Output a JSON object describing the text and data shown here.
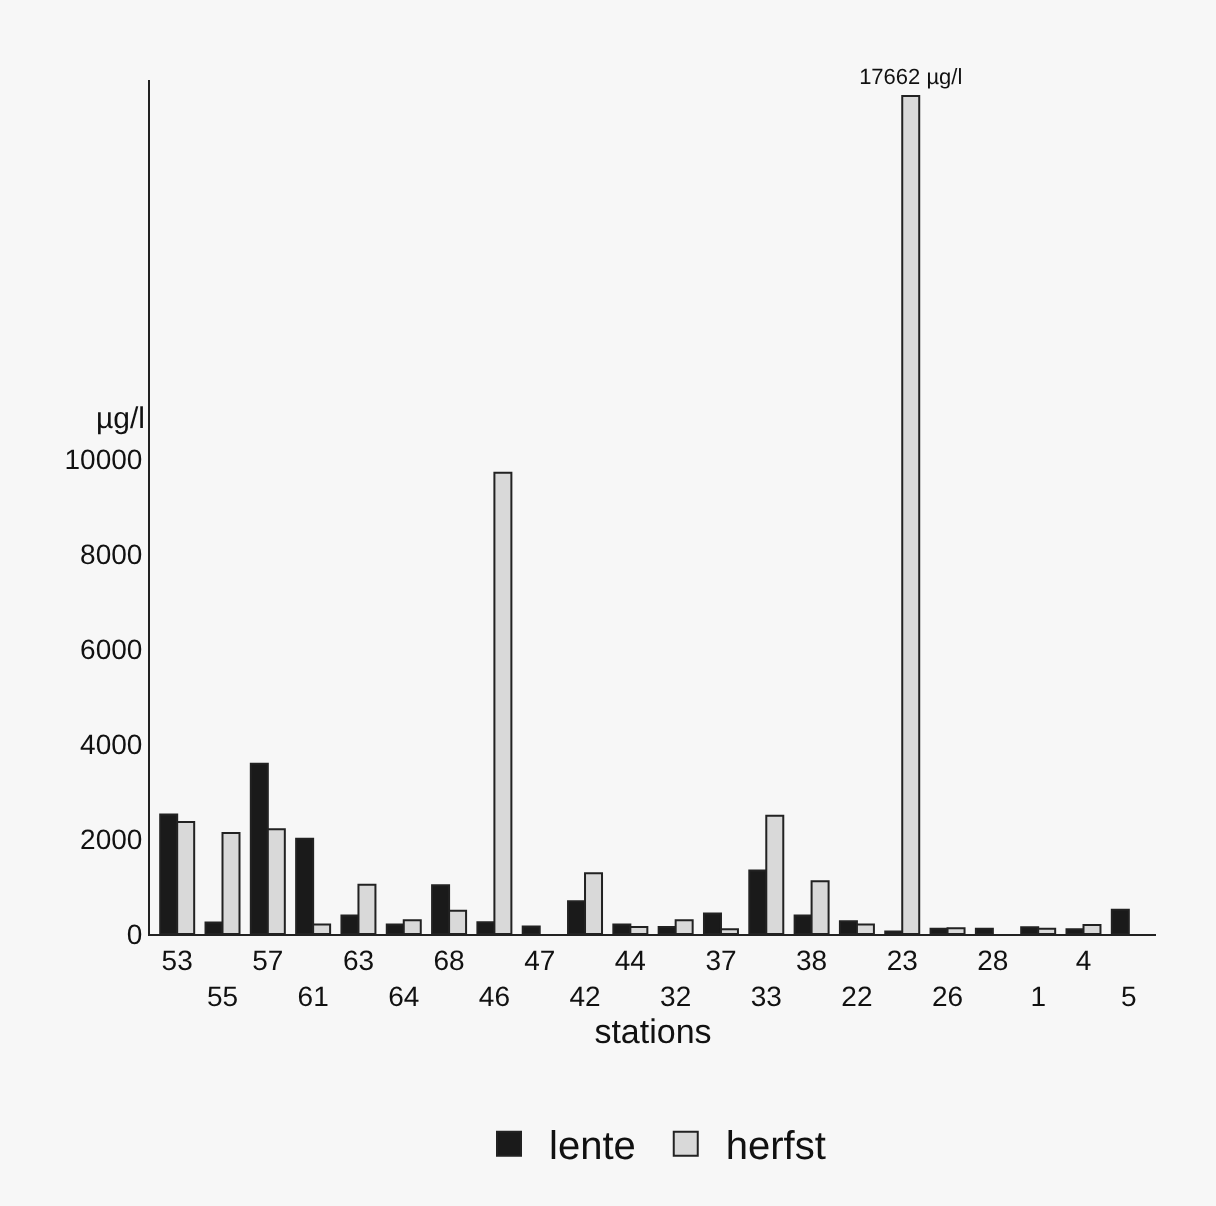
{
  "chart_data": {
    "type": "bar",
    "xlabel": "stations",
    "ylabel": "µg/l",
    "categories": [
      "53",
      "55",
      "57",
      "61",
      "63",
      "64",
      "68",
      "46",
      "47",
      "42",
      "44",
      "32",
      "37",
      "33",
      "38",
      "22",
      "23",
      "26",
      "28",
      "1",
      "4",
      "5"
    ],
    "series": [
      {
        "name": "lente",
        "color": "#1a1a1a",
        "values": [
          2520,
          240,
          3590,
          2010,
          390,
          200,
          1030,
          250,
          160,
          690,
          200,
          150,
          430,
          1340,
          390,
          270,
          50,
          110,
          110,
          140,
          100,
          510
        ]
      },
      {
        "name": "herfst",
        "color": "#d9d9d9",
        "values": [
          2360,
          2130,
          2210,
          200,
          1040,
          290,
          490,
          9720,
          null,
          1280,
          150,
          290,
          100,
          2490,
          1110,
          200,
          17662,
          120,
          null,
          110,
          190,
          null
        ],
        "value_labels": [
          null,
          null,
          null,
          null,
          null,
          null,
          null,
          null,
          null,
          null,
          null,
          null,
          null,
          null,
          null,
          null,
          "17662 µg/l",
          null,
          null,
          null,
          null,
          null
        ]
      }
    ],
    "ylim": [
      0,
      18000
    ],
    "yticks": [
      0,
      2000,
      4000,
      6000,
      8000,
      10000
    ],
    "grid": false,
    "legend": "bottom"
  }
}
